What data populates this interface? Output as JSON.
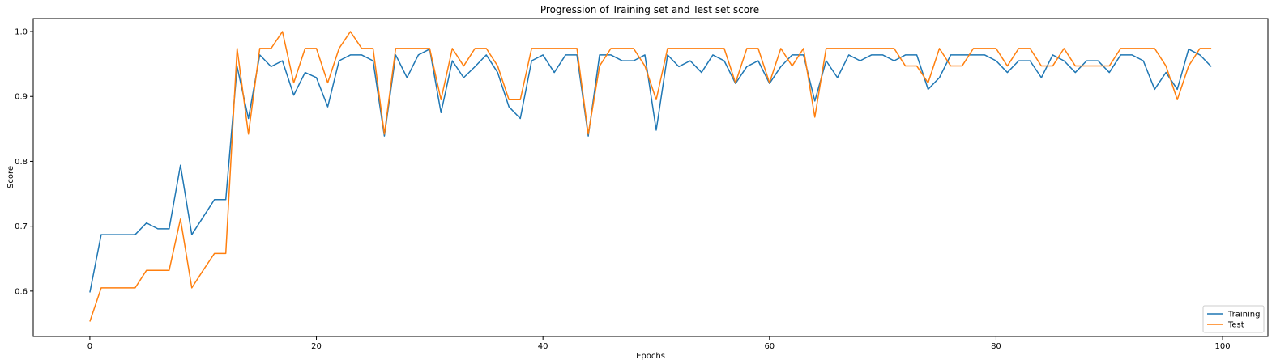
{
  "chart_data": {
    "type": "line",
    "title": "Progression of Training set and Test set score",
    "xlabel": "Epochs",
    "ylabel": "Score",
    "xlim": [
      -5,
      104
    ],
    "ylim": [
      0.53,
      1.02
    ],
    "xticks": [
      0,
      20,
      40,
      60,
      80,
      100
    ],
    "yticks": [
      0.6,
      0.7,
      0.8,
      0.9,
      1.0
    ],
    "xtick_labels": [
      "0",
      "20",
      "40",
      "60",
      "80",
      "100"
    ],
    "ytick_labels": [
      "0.6",
      "0.7",
      "0.8",
      "0.9",
      "1.0"
    ],
    "grid": false,
    "legend_position": "lower-right",
    "x": [
      0,
      1,
      2,
      3,
      4,
      5,
      6,
      7,
      8,
      9,
      10,
      11,
      12,
      13,
      14,
      15,
      16,
      17,
      18,
      19,
      20,
      21,
      22,
      23,
      24,
      25,
      26,
      27,
      28,
      29,
      30,
      31,
      32,
      33,
      34,
      35,
      36,
      37,
      38,
      39,
      40,
      41,
      42,
      43,
      44,
      45,
      46,
      47,
      48,
      49,
      50,
      51,
      52,
      53,
      54,
      55,
      56,
      57,
      58,
      59,
      60,
      61,
      62,
      63,
      64,
      65,
      66,
      67,
      68,
      69,
      70,
      71,
      72,
      73,
      74,
      75,
      76,
      77,
      78,
      79,
      80,
      81,
      82,
      83,
      84,
      85,
      86,
      87,
      88,
      89,
      90,
      91,
      92,
      93,
      94,
      95,
      96,
      97,
      98,
      99
    ],
    "series": [
      {
        "name": "Training",
        "color": "#1f77b4",
        "values": [
          0.598,
          0.687,
          0.687,
          0.687,
          0.687,
          0.705,
          0.696,
          0.696,
          0.794,
          0.687,
          0.714,
          0.741,
          0.741,
          0.946,
          0.866,
          0.964,
          0.946,
          0.955,
          0.902,
          0.937,
          0.929,
          0.884,
          0.955,
          0.964,
          0.964,
          0.955,
          0.839,
          0.964,
          0.929,
          0.964,
          0.973,
          0.875,
          0.955,
          0.929,
          0.946,
          0.964,
          0.937,
          0.884,
          0.866,
          0.955,
          0.964,
          0.937,
          0.964,
          0.964,
          0.839,
          0.964,
          0.964,
          0.955,
          0.955,
          0.964,
          0.848,
          0.964,
          0.946,
          0.955,
          0.937,
          0.964,
          0.955,
          0.92,
          0.946,
          0.955,
          0.92,
          0.946,
          0.964,
          0.964,
          0.893,
          0.955,
          0.929,
          0.964,
          0.955,
          0.964,
          0.964,
          0.955,
          0.964,
          0.964,
          0.911,
          0.929,
          0.964,
          0.964,
          0.964,
          0.964,
          0.955,
          0.937,
          0.955,
          0.955,
          0.929,
          0.964,
          0.955,
          0.937,
          0.955,
          0.955,
          0.937,
          0.964,
          0.964,
          0.955,
          0.911,
          0.937,
          0.911,
          0.973,
          0.964,
          0.946
        ]
      },
      {
        "name": "Test",
        "color": "#ff7f0e",
        "values": [
          0.553,
          0.605,
          0.605,
          0.605,
          0.605,
          0.632,
          0.632,
          0.632,
          0.711,
          0.605,
          0.632,
          0.658,
          0.658,
          0.974,
          0.842,
          0.974,
          0.974,
          1.0,
          0.921,
          0.974,
          0.974,
          0.921,
          0.974,
          1.0,
          0.974,
          0.974,
          0.842,
          0.974,
          0.974,
          0.974,
          0.974,
          0.895,
          0.974,
          0.947,
          0.974,
          0.974,
          0.947,
          0.895,
          0.895,
          0.974,
          0.974,
          0.974,
          0.974,
          0.974,
          0.842,
          0.947,
          0.974,
          0.974,
          0.974,
          0.947,
          0.895,
          0.974,
          0.974,
          0.974,
          0.974,
          0.974,
          0.974,
          0.921,
          0.974,
          0.974,
          0.921,
          0.974,
          0.947,
          0.974,
          0.868,
          0.974,
          0.974,
          0.974,
          0.974,
          0.974,
          0.974,
          0.974,
          0.947,
          0.947,
          0.921,
          0.974,
          0.947,
          0.947,
          0.974,
          0.974,
          0.974,
          0.947,
          0.974,
          0.974,
          0.947,
          0.947,
          0.974,
          0.947,
          0.947,
          0.947,
          0.947,
          0.974,
          0.974,
          0.974,
          0.974,
          0.947,
          0.895,
          0.947,
          0.974,
          0.974
        ]
      }
    ]
  }
}
